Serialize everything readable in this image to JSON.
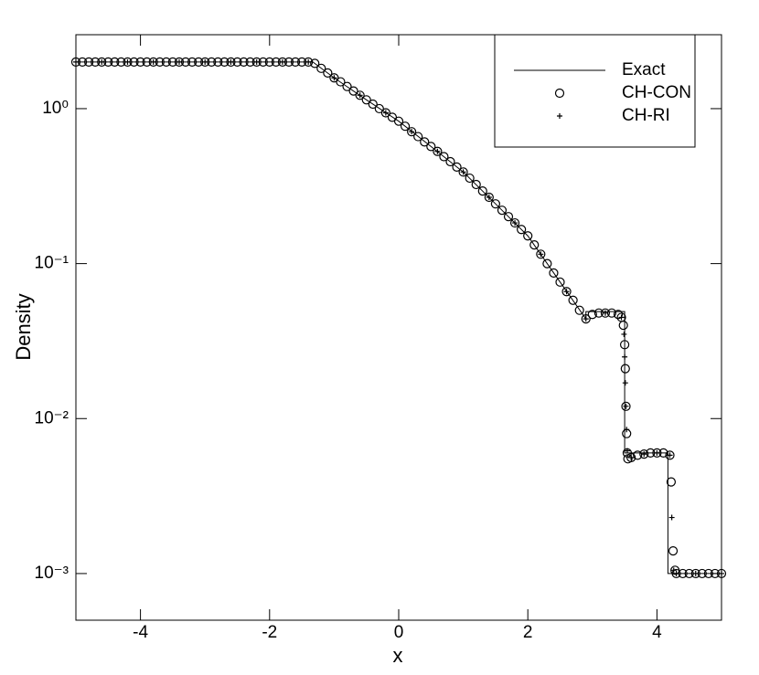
{
  "chart_data": {
    "type": "scatter",
    "x_label": "x",
    "y_label": "Density",
    "yscale": "log",
    "xlim": [
      -5,
      5
    ],
    "ylim": [
      0.0005,
      3
    ],
    "xticks": [
      -4,
      -2,
      0,
      2,
      4
    ],
    "yticks": [
      {
        "value": 0.001,
        "label": "10⁻³"
      },
      {
        "value": 0.01,
        "label": "10⁻²"
      },
      {
        "value": 0.1,
        "label": "10⁻¹"
      },
      {
        "value": 1,
        "label": "10⁰"
      }
    ],
    "legend_position": "upper right",
    "series": [
      {
        "name": "Exact",
        "color": "#000000",
        "mode": "line",
        "x": [
          -5,
          -1.33,
          -1,
          -0.5,
          0,
          0.5,
          1,
          1.5,
          2,
          2.5,
          2.9,
          2.9,
          3.5,
          3.5,
          4.17,
          4.17,
          5
        ],
        "values": [
          2,
          2,
          1.58,
          1.14,
          0.83,
          0.57,
          0.39,
          0.243,
          0.151,
          0.076,
          0.044,
          0.049,
          0.049,
          0.006,
          0.006,
          0.001,
          0.001
        ]
      },
      {
        "name": "CH-CON",
        "color": "#000000",
        "mode": "markers",
        "marker": "circle",
        "x": [
          -5,
          -4.9,
          -4.8,
          -4.7,
          -4.6,
          -4.5,
          -4.4,
          -4.3,
          -4.2,
          -4.1,
          -4,
          -3.9,
          -3.8,
          -3.7,
          -3.6,
          -3.5,
          -3.4,
          -3.3,
          -3.2,
          -3.1,
          -3,
          -2.9,
          -2.8,
          -2.7,
          -2.6,
          -2.5,
          -2.4,
          -2.3,
          -2.2,
          -2.1,
          -2,
          -1.9,
          -1.8,
          -1.7,
          -1.6,
          -1.5,
          -1.4,
          -1.3,
          -1.2,
          -1.1,
          -1,
          -0.9,
          -0.8,
          -0.7,
          -0.6,
          -0.5,
          -0.4,
          -0.3,
          -0.2,
          -0.1,
          0,
          0.1,
          0.2,
          0.3,
          0.4,
          0.5,
          0.6,
          0.7,
          0.8,
          0.9,
          1,
          1.1,
          1.2,
          1.3,
          1.4,
          1.5,
          1.6,
          1.7,
          1.8,
          1.9,
          2,
          2.1,
          2.2,
          2.3,
          2.4,
          2.5,
          2.6,
          2.7,
          2.8,
          2.9,
          3,
          3.1,
          3.2,
          3.3,
          3.4,
          3.45,
          3.48,
          3.5,
          3.51,
          3.52,
          3.53,
          3.54,
          3.55,
          3.6,
          3.7,
          3.8,
          3.9,
          4,
          4.1,
          4.2,
          4.22,
          4.25,
          4.28,
          4.3,
          4.4,
          4.5,
          4.6,
          4.7,
          4.8,
          4.9,
          5
        ],
        "values": [
          2,
          2,
          2,
          2,
          2,
          2,
          2,
          2,
          2,
          2,
          2,
          2,
          2,
          2,
          2,
          2,
          2,
          2,
          2,
          2,
          2,
          2,
          2,
          2,
          2,
          2,
          2,
          2,
          2,
          2,
          2,
          2,
          2,
          2,
          2,
          2,
          2,
          1.96,
          1.82,
          1.7,
          1.58,
          1.49,
          1.39,
          1.3,
          1.22,
          1.14,
          1.07,
          1,
          0.94,
          0.88,
          0.83,
          0.77,
          0.71,
          0.66,
          0.61,
          0.57,
          0.53,
          0.49,
          0.455,
          0.42,
          0.39,
          0.356,
          0.324,
          0.294,
          0.268,
          0.243,
          0.221,
          0.201,
          0.183,
          0.166,
          0.151,
          0.132,
          0.115,
          0.1,
          0.087,
          0.076,
          0.066,
          0.058,
          0.05,
          0.044,
          0.047,
          0.048,
          0.048,
          0.048,
          0.047,
          0.045,
          0.04,
          0.03,
          0.021,
          0.012,
          0.008,
          0.006,
          0.0055,
          0.0056,
          0.0058,
          0.0059,
          0.006,
          0.006,
          0.006,
          0.0058,
          0.0039,
          0.0014,
          0.00105,
          0.001,
          0.001,
          0.001,
          0.001,
          0.001,
          0.001,
          0.001,
          0.001
        ]
      },
      {
        "name": "CH-RI",
        "color": "#000000",
        "mode": "markers",
        "marker": "plus",
        "x": [
          -5,
          -4.6,
          -4.2,
          -3.8,
          -3.4,
          -3,
          -2.6,
          -2.2,
          -1.8,
          -1.4,
          -1,
          -0.6,
          -0.2,
          0.2,
          0.6,
          1,
          1.4,
          1.8,
          2.2,
          2.6,
          2.9,
          3.2,
          3.45,
          3.49,
          3.5,
          3.51,
          3.52,
          3.53,
          3.54,
          3.6,
          3.8,
          4,
          4.2,
          4.23,
          4.26,
          4.3,
          4.6,
          5
        ],
        "values": [
          2,
          2,
          2,
          2,
          2,
          2,
          2,
          2,
          2,
          2,
          1.58,
          1.22,
          0.94,
          0.71,
          0.53,
          0.39,
          0.268,
          0.183,
          0.115,
          0.066,
          0.044,
          0.048,
          0.045,
          0.035,
          0.025,
          0.017,
          0.012,
          0.0085,
          0.0062,
          0.0056,
          0.0059,
          0.006,
          0.0058,
          0.0023,
          0.00105,
          0.001,
          0.001,
          0.001
        ]
      }
    ]
  }
}
